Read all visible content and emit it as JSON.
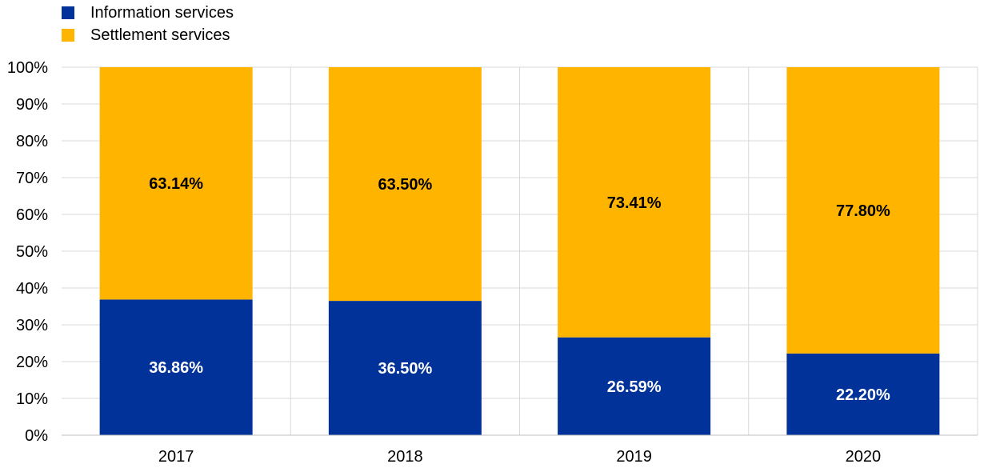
{
  "chart_data": {
    "type": "bar",
    "stacked": true,
    "percent_stacked": true,
    "categories": [
      "2017",
      "2018",
      "2019",
      "2020"
    ],
    "series": [
      {
        "name": "Information services",
        "color": "#003299",
        "values": [
          36.86,
          36.5,
          26.59,
          22.2
        ],
        "labels": [
          "36.86%",
          "36.50%",
          "26.59%",
          "22.20%"
        ],
        "label_color": "#ffffff"
      },
      {
        "name": "Settlement services",
        "color": "#ffb400",
        "values": [
          63.14,
          63.5,
          73.41,
          77.8
        ],
        "labels": [
          "63.14%",
          "63.50%",
          "73.41%",
          "77.80%"
        ],
        "label_color": "#000000"
      }
    ],
    "ylim": [
      0,
      100
    ],
    "yticks": [
      0,
      10,
      20,
      30,
      40,
      50,
      60,
      70,
      80,
      90,
      100
    ],
    "ytick_labels": [
      "0%",
      "10%",
      "20%",
      "30%",
      "40%",
      "50%",
      "60%",
      "70%",
      "80%",
      "90%",
      "100%"
    ],
    "grid": true,
    "legend_position": "top-left",
    "title": "",
    "xlabel": "",
    "ylabel": ""
  }
}
